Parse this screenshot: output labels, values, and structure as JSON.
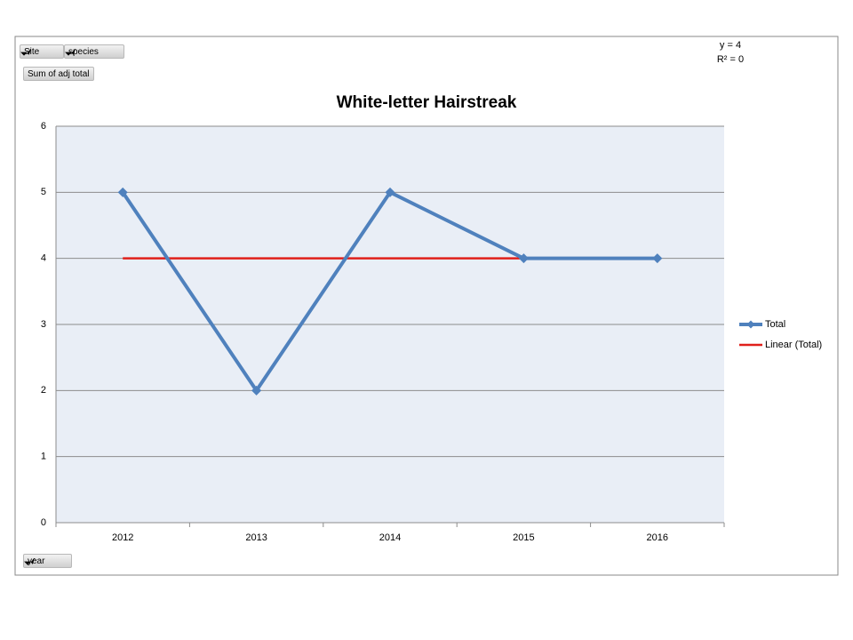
{
  "chart_data": {
    "type": "line",
    "title": "White-letter Hairstreak",
    "categories": [
      "2012",
      "2013",
      "2014",
      "2015",
      "2016"
    ],
    "series": [
      {
        "name": "Total",
        "color": "#4f81bd",
        "values": [
          5,
          2,
          5,
          4,
          4
        ]
      },
      {
        "name": "Linear (Total)",
        "color": "#e0201b",
        "values": [
          4,
          4,
          4,
          4,
          4
        ]
      }
    ],
    "ylim": [
      0,
      6
    ],
    "yticks": [
      0,
      1,
      2,
      3,
      4,
      5,
      6
    ],
    "grid": true,
    "legend": "right",
    "annotations": [
      "y = 4",
      "R² = 0"
    ],
    "filters": [
      "Site",
      "species"
    ],
    "value_field": "Sum of adj total",
    "axis_field": "year"
  }
}
